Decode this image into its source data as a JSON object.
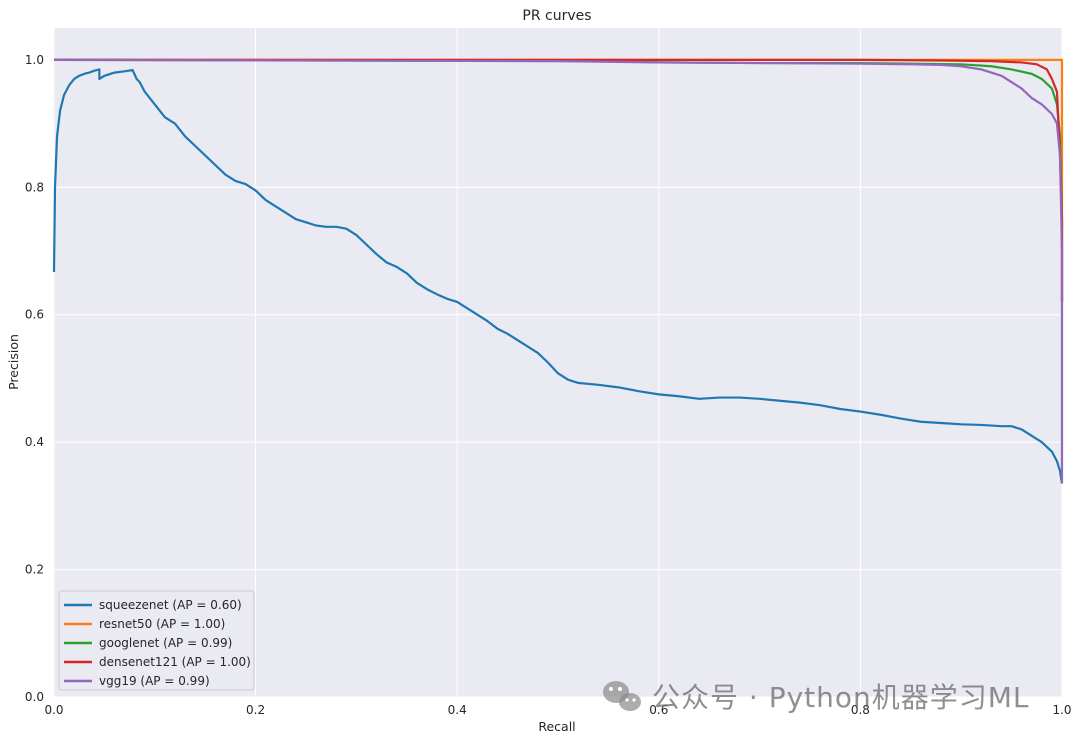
{
  "chart_data": {
    "type": "line",
    "title": "PR curves",
    "xlabel": "Recall",
    "ylabel": "Precision",
    "xlim": [
      0,
      1
    ],
    "ylim": [
      0,
      1.05
    ],
    "xticks": [
      0.0,
      0.2,
      0.4,
      0.6,
      0.8,
      1.0
    ],
    "xtick_labels": [
      "0.0",
      "0.2",
      "0.4",
      "0.6",
      "0.8",
      "1.0"
    ],
    "yticks": [
      0.0,
      0.2,
      0.4,
      0.6,
      0.8,
      1.0
    ],
    "ytick_labels": [
      "0.0",
      "0.2",
      "0.4",
      "0.6",
      "0.8",
      "1.0"
    ],
    "grid": true,
    "background": "#eaeaf2",
    "legend_position": "lower-left",
    "series": [
      {
        "name": "squeezenet (AP = 0.60)",
        "color": "#1f77b4",
        "x": [
          0.0,
          0.001,
          0.003,
          0.006,
          0.01,
          0.015,
          0.02,
          0.025,
          0.03,
          0.035,
          0.04,
          0.045,
          0.045,
          0.05,
          0.06,
          0.07,
          0.078,
          0.082,
          0.085,
          0.09,
          0.095,
          0.1,
          0.105,
          0.11,
          0.115,
          0.12,
          0.13,
          0.14,
          0.15,
          0.16,
          0.17,
          0.18,
          0.19,
          0.2,
          0.21,
          0.22,
          0.23,
          0.24,
          0.25,
          0.26,
          0.27,
          0.28,
          0.29,
          0.3,
          0.31,
          0.32,
          0.33,
          0.34,
          0.35,
          0.36,
          0.37,
          0.38,
          0.39,
          0.4,
          0.41,
          0.42,
          0.43,
          0.44,
          0.45,
          0.46,
          0.47,
          0.48,
          0.49,
          0.5,
          0.51,
          0.52,
          0.54,
          0.56,
          0.58,
          0.6,
          0.62,
          0.64,
          0.66,
          0.68,
          0.7,
          0.72,
          0.74,
          0.76,
          0.78,
          0.8,
          0.82,
          0.84,
          0.86,
          0.88,
          0.9,
          0.92,
          0.94,
          0.95,
          0.96,
          0.97,
          0.98,
          0.99,
          0.995,
          0.998,
          1.0
        ],
        "y": [
          0.667,
          0.8,
          0.88,
          0.92,
          0.945,
          0.96,
          0.97,
          0.975,
          0.978,
          0.98,
          0.983,
          0.985,
          0.97,
          0.975,
          0.98,
          0.982,
          0.984,
          0.97,
          0.965,
          0.95,
          0.94,
          0.93,
          0.92,
          0.91,
          0.905,
          0.9,
          0.88,
          0.865,
          0.85,
          0.835,
          0.82,
          0.81,
          0.805,
          0.795,
          0.78,
          0.77,
          0.76,
          0.75,
          0.745,
          0.74,
          0.738,
          0.738,
          0.735,
          0.725,
          0.71,
          0.695,
          0.682,
          0.675,
          0.665,
          0.65,
          0.64,
          0.632,
          0.625,
          0.62,
          0.61,
          0.6,
          0.59,
          0.578,
          0.57,
          0.56,
          0.55,
          0.54,
          0.525,
          0.508,
          0.498,
          0.493,
          0.49,
          0.486,
          0.48,
          0.475,
          0.472,
          0.468,
          0.47,
          0.47,
          0.468,
          0.465,
          0.462,
          0.458,
          0.452,
          0.448,
          0.443,
          0.437,
          0.432,
          0.43,
          0.428,
          0.427,
          0.425,
          0.425,
          0.42,
          0.41,
          0.4,
          0.385,
          0.37,
          0.355,
          0.335
        ]
      },
      {
        "name": "resnet50 (AP = 1.00)",
        "color": "#ff7f0e",
        "x": [
          0.0,
          0.995,
          1.0,
          1.0
        ],
        "y": [
          1.0,
          1.0,
          1.0,
          0.62
        ]
      },
      {
        "name": "googlenet (AP = 0.99)",
        "color": "#2ca02c",
        "x": [
          0.0,
          0.55,
          0.6,
          0.7,
          0.8,
          0.85,
          0.9,
          0.93,
          0.95,
          0.97,
          0.98,
          0.99,
          0.995,
          0.998,
          1.0,
          1.0
        ],
        "y": [
          1.0,
          0.998,
          0.996,
          0.995,
          0.995,
          0.994,
          0.993,
          0.99,
          0.985,
          0.978,
          0.97,
          0.955,
          0.93,
          0.88,
          0.75,
          0.62
        ]
      },
      {
        "name": "densenet121 (AP = 1.00)",
        "color": "#d62728",
        "x": [
          0.0,
          0.7,
          0.8,
          0.88,
          0.93,
          0.96,
          0.975,
          0.985,
          0.99,
          0.995,
          0.998,
          1.0,
          1.0
        ],
        "y": [
          1.0,
          1.0,
          1.0,
          0.999,
          0.998,
          0.996,
          0.993,
          0.985,
          0.97,
          0.95,
          0.85,
          0.75,
          0.62
        ]
      },
      {
        "name": "vgg19 (AP = 0.99)",
        "color": "#9467bd",
        "x": [
          0.0,
          0.5,
          0.6,
          0.7,
          0.8,
          0.85,
          0.88,
          0.9,
          0.92,
          0.94,
          0.96,
          0.97,
          0.98,
          0.99,
          0.995,
          0.998,
          1.0,
          1.0
        ],
        "y": [
          1.0,
          0.998,
          0.996,
          0.995,
          0.994,
          0.993,
          0.992,
          0.99,
          0.985,
          0.975,
          0.955,
          0.94,
          0.93,
          0.915,
          0.9,
          0.85,
          0.7,
          0.335
        ]
      }
    ]
  },
  "watermark": {
    "text": "公众号 · Python机器学习ML",
    "icon": "wechat-icon"
  }
}
